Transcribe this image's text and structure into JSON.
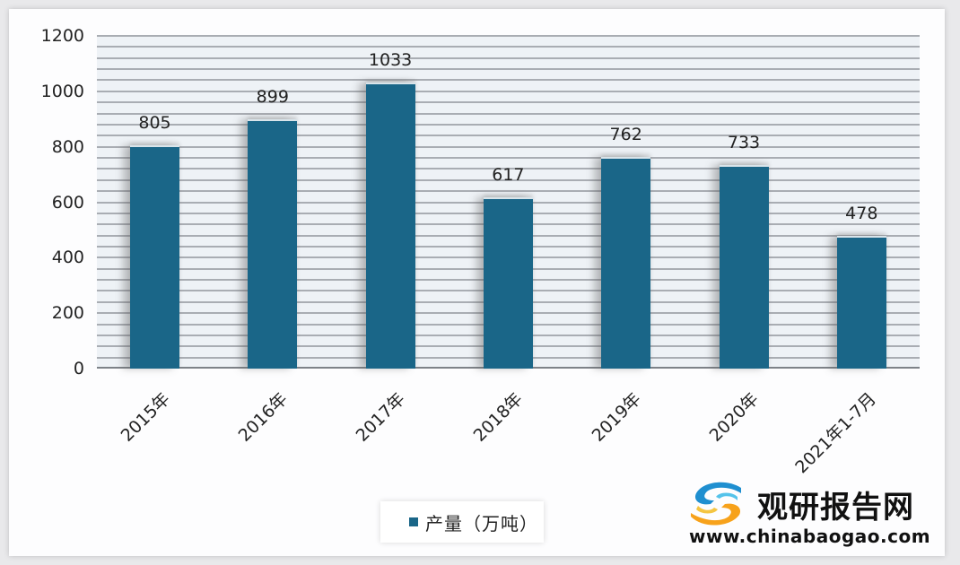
{
  "chart_data": {
    "type": "bar",
    "title": "",
    "categories": [
      "2015年",
      "2016年",
      "2017年",
      "2018年",
      "2019年",
      "2020年",
      "2021年1-7月"
    ],
    "series": [
      {
        "name": "产量（万吨）",
        "values": [
          805,
          899,
          1033,
          617,
          762,
          733,
          478
        ],
        "color": "#1a6688"
      }
    ],
    "value_labels": [
      "805",
      "899",
      "1033",
      "617",
      "762",
      "733",
      "478"
    ],
    "xlabel": "",
    "ylabel": "",
    "ylim": [
      0,
      1200
    ],
    "yticks": [
      "0",
      "200",
      "400",
      "600",
      "800",
      "1000",
      "1200"
    ],
    "grid": true,
    "grid_interval": 40,
    "legend_position": "bottom"
  },
  "legend": {
    "label": "产量（万吨）",
    "color": "#1a6688"
  },
  "watermark": {
    "title": "观研报告网",
    "url": "www.chinabaogao.com",
    "icon": "chinabaogao-logo-icon"
  },
  "colors": {
    "bar": "#1a6688",
    "plot_bg": "#eef2f6",
    "gridline": "#a9adb3"
  }
}
